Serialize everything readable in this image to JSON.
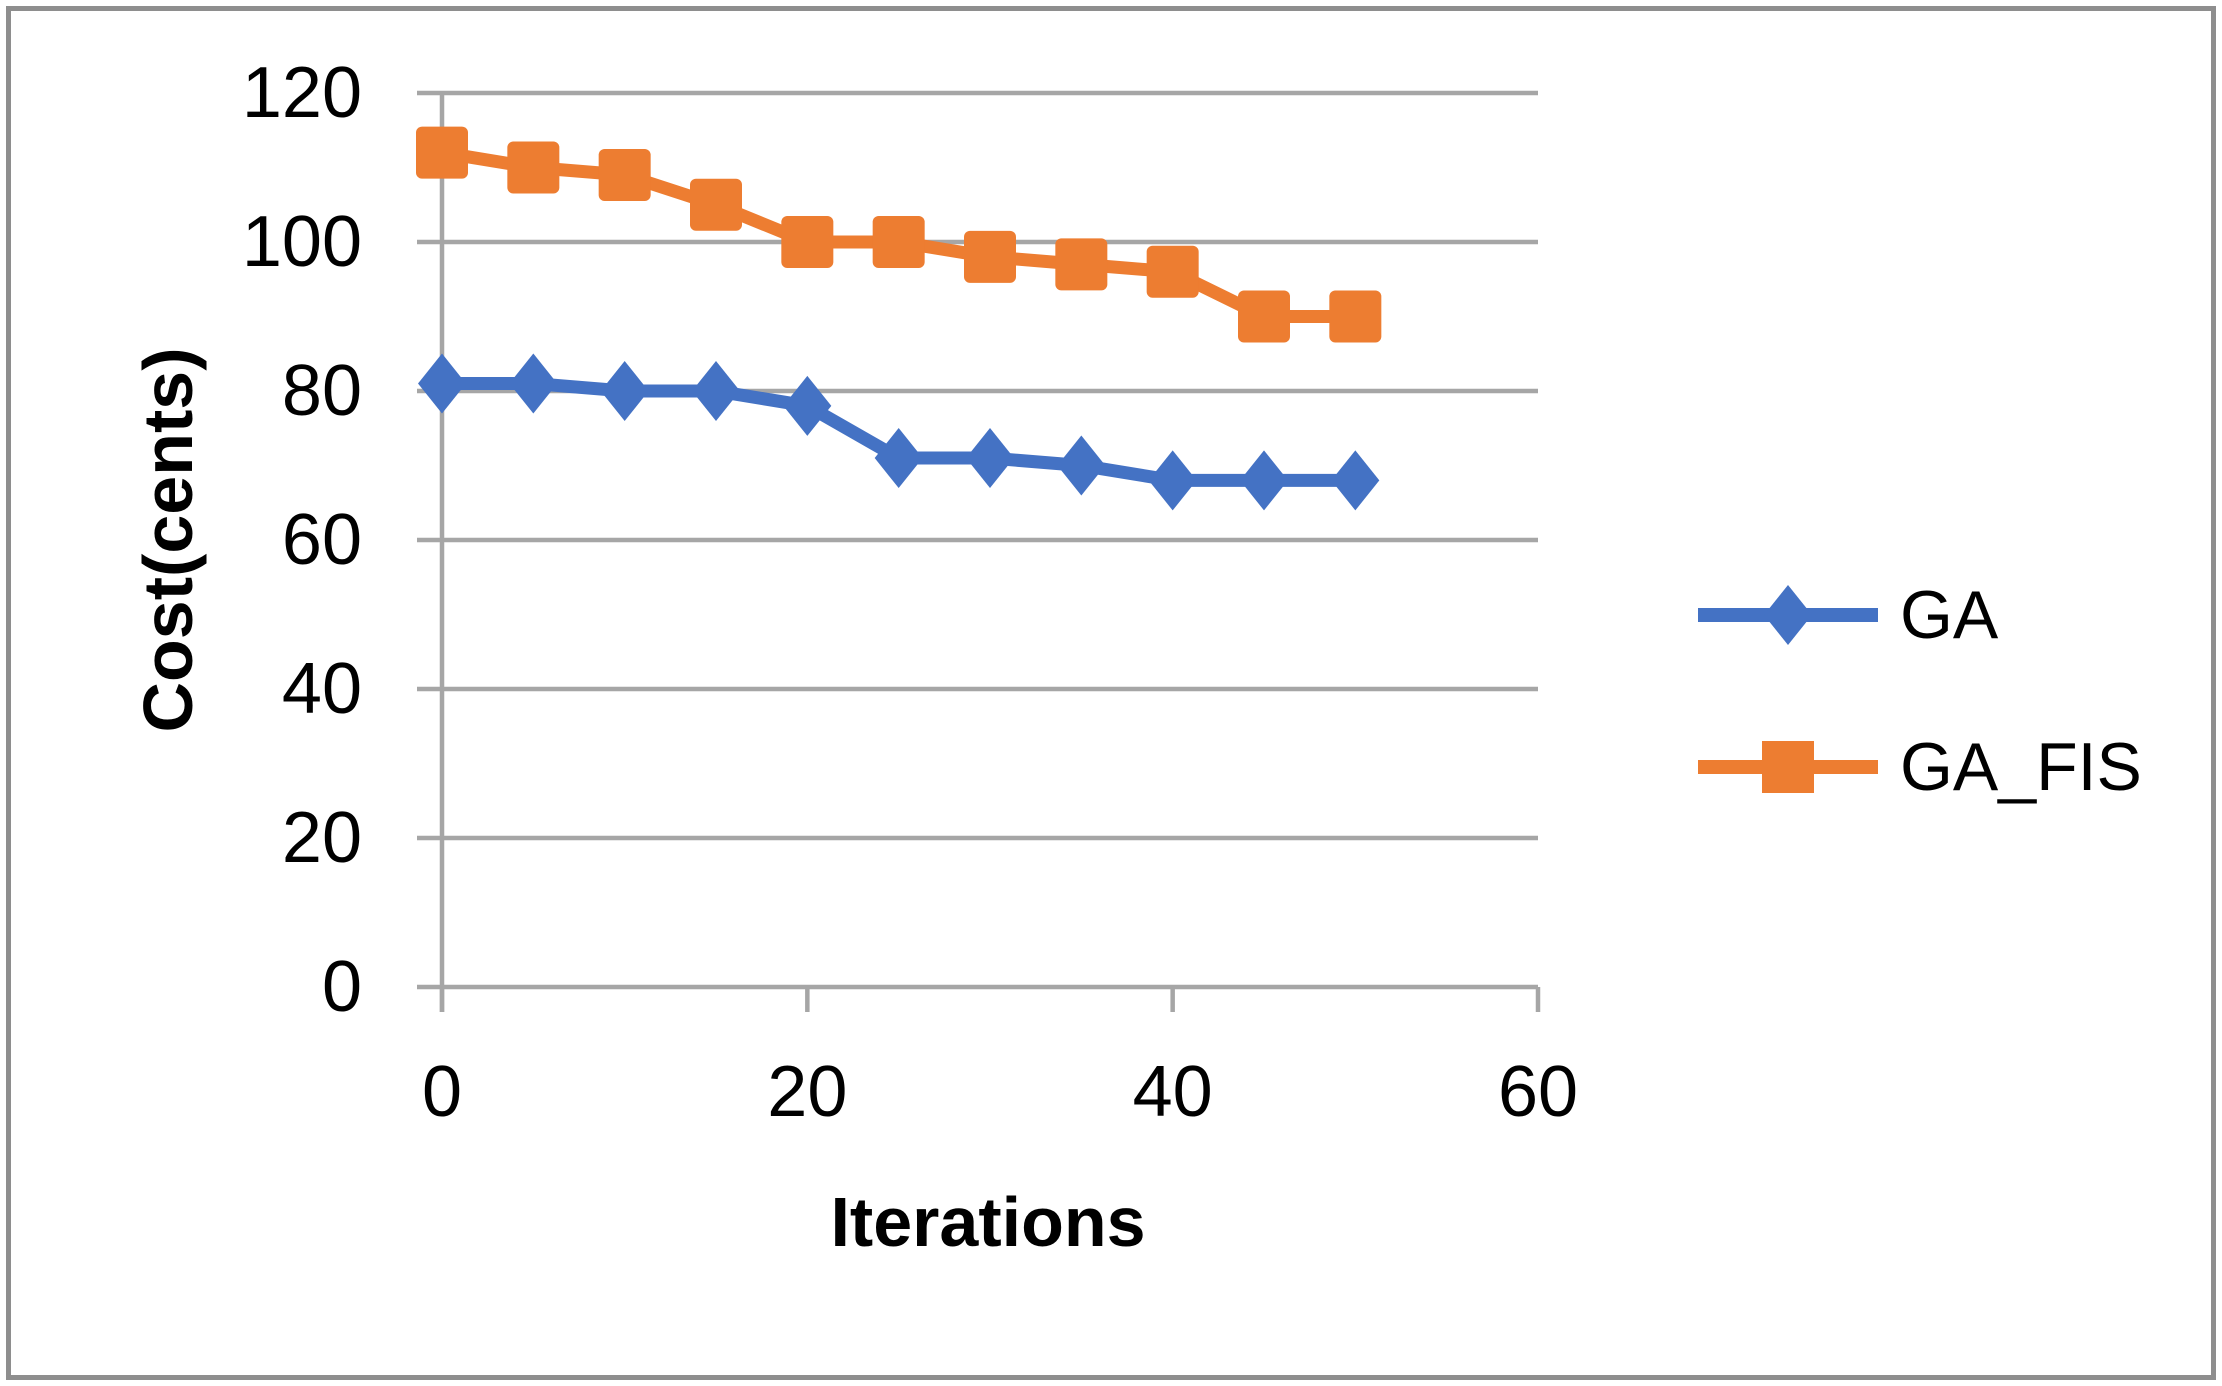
{
  "chart_data": {
    "type": "line",
    "title": "",
    "xlabel": "Iterations",
    "ylabel": "Cost(cents)",
    "x": [
      0,
      5,
      10,
      15,
      20,
      25,
      30,
      35,
      40,
      45,
      50
    ],
    "series": [
      {
        "name": "GA",
        "color": "#4472C4",
        "marker": "diamond",
        "values": [
          81,
          81,
          80,
          80,
          78,
          71,
          71,
          70,
          68,
          68,
          68
        ]
      },
      {
        "name": "GA_FIS",
        "color": "#ED7D31",
        "marker": "square",
        "values": [
          112,
          110,
          109,
          105,
          100,
          100,
          98,
          97,
          96,
          90,
          90
        ]
      }
    ],
    "xlim": [
      0,
      60
    ],
    "ylim": [
      0,
      120
    ],
    "xticks": [
      0,
      20,
      40,
      60
    ],
    "yticks": [
      0,
      20,
      40,
      60,
      80,
      100,
      120
    ],
    "grid": "horizontal",
    "legend_position": "right"
  },
  "style": {
    "axis_color": "#A6A6A6",
    "gridline_color": "#A6A6A6",
    "frame_border_color": "#8E8E8E",
    "background": "#ffffff",
    "text_color": "#000000"
  }
}
